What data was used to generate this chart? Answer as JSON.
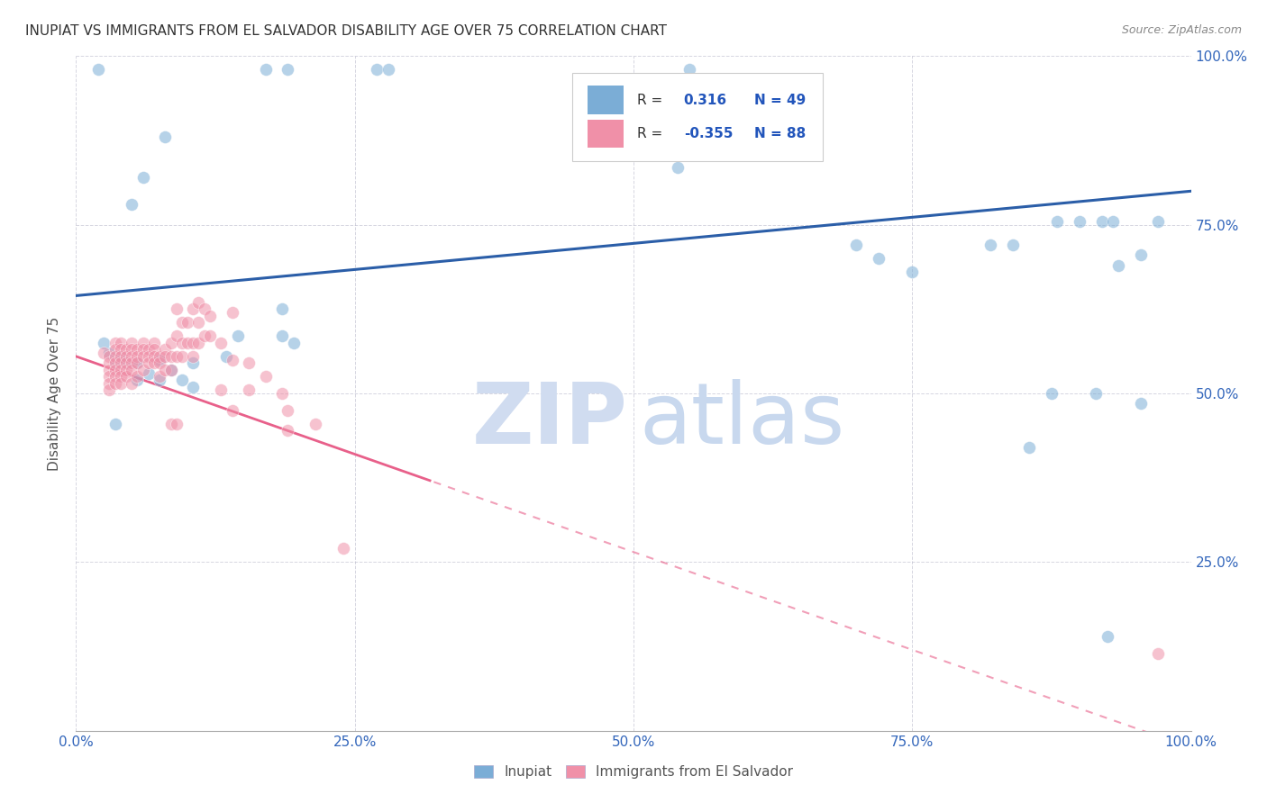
{
  "title": "INUPIAT VS IMMIGRANTS FROM EL SALVADOR DISABILITY AGE OVER 75 CORRELATION CHART",
  "source": "Source: ZipAtlas.com",
  "ylabel": "Disability Age Over 75",
  "xlim": [
    0,
    1
  ],
  "ylim": [
    0,
    1
  ],
  "xticks": [
    0.0,
    0.25,
    0.5,
    0.75,
    1.0
  ],
  "yticks": [
    0.0,
    0.25,
    0.5,
    0.75,
    1.0
  ],
  "xtick_labels": [
    "0.0%",
    "25.0%",
    "50.0%",
    "75.0%",
    "100.0%"
  ],
  "ytick_labels_right": [
    "",
    "25.0%",
    "50.0%",
    "75.0%",
    "100.0%"
  ],
  "blue_color": "#7BADD6",
  "pink_color": "#F090A8",
  "blue_line_color": "#2B5EA8",
  "pink_line_color": "#E8608A",
  "watermark_zip_color": "#D0DCF0",
  "watermark_atlas_color": "#C8D8EE",
  "blue_scatter": [
    [
      0.02,
      0.98
    ],
    [
      0.08,
      0.88
    ],
    [
      0.06,
      0.82
    ],
    [
      0.05,
      0.78
    ],
    [
      0.17,
      0.98
    ],
    [
      0.19,
      0.98
    ],
    [
      0.27,
      0.98
    ],
    [
      0.28,
      0.98
    ],
    [
      0.52,
      0.865
    ],
    [
      0.54,
      0.835
    ],
    [
      0.55,
      0.98
    ],
    [
      0.7,
      0.72
    ],
    [
      0.72,
      0.7
    ],
    [
      0.75,
      0.68
    ],
    [
      0.82,
      0.72
    ],
    [
      0.84,
      0.72
    ],
    [
      0.88,
      0.755
    ],
    [
      0.9,
      0.755
    ],
    [
      0.92,
      0.755
    ],
    [
      0.93,
      0.755
    ],
    [
      0.97,
      0.755
    ],
    [
      0.935,
      0.69
    ],
    [
      0.955,
      0.705
    ],
    [
      0.875,
      0.5
    ],
    [
      0.915,
      0.5
    ],
    [
      0.955,
      0.485
    ],
    [
      0.855,
      0.42
    ],
    [
      0.925,
      0.14
    ],
    [
      0.035,
      0.545
    ],
    [
      0.04,
      0.555
    ],
    [
      0.045,
      0.545
    ],
    [
      0.03,
      0.56
    ],
    [
      0.025,
      0.575
    ],
    [
      0.055,
      0.545
    ],
    [
      0.055,
      0.52
    ],
    [
      0.065,
      0.53
    ],
    [
      0.075,
      0.55
    ],
    [
      0.075,
      0.52
    ],
    [
      0.085,
      0.535
    ],
    [
      0.095,
      0.52
    ],
    [
      0.105,
      0.545
    ],
    [
      0.105,
      0.51
    ],
    [
      0.145,
      0.585
    ],
    [
      0.135,
      0.555
    ],
    [
      0.185,
      0.625
    ],
    [
      0.185,
      0.585
    ],
    [
      0.195,
      0.575
    ],
    [
      0.035,
      0.455
    ]
  ],
  "pink_scatter": [
    [
      0.025,
      0.56
    ],
    [
      0.03,
      0.555
    ],
    [
      0.03,
      0.545
    ],
    [
      0.03,
      0.535
    ],
    [
      0.03,
      0.525
    ],
    [
      0.03,
      0.515
    ],
    [
      0.03,
      0.505
    ],
    [
      0.035,
      0.575
    ],
    [
      0.035,
      0.565
    ],
    [
      0.035,
      0.555
    ],
    [
      0.035,
      0.545
    ],
    [
      0.035,
      0.535
    ],
    [
      0.035,
      0.525
    ],
    [
      0.035,
      0.515
    ],
    [
      0.04,
      0.575
    ],
    [
      0.04,
      0.565
    ],
    [
      0.04,
      0.555
    ],
    [
      0.04,
      0.545
    ],
    [
      0.04,
      0.535
    ],
    [
      0.04,
      0.525
    ],
    [
      0.04,
      0.515
    ],
    [
      0.045,
      0.565
    ],
    [
      0.045,
      0.555
    ],
    [
      0.045,
      0.545
    ],
    [
      0.045,
      0.535
    ],
    [
      0.045,
      0.525
    ],
    [
      0.05,
      0.575
    ],
    [
      0.05,
      0.565
    ],
    [
      0.05,
      0.555
    ],
    [
      0.05,
      0.545
    ],
    [
      0.05,
      0.535
    ],
    [
      0.05,
      0.515
    ],
    [
      0.055,
      0.565
    ],
    [
      0.055,
      0.555
    ],
    [
      0.055,
      0.545
    ],
    [
      0.055,
      0.525
    ],
    [
      0.06,
      0.575
    ],
    [
      0.06,
      0.565
    ],
    [
      0.06,
      0.555
    ],
    [
      0.06,
      0.535
    ],
    [
      0.065,
      0.565
    ],
    [
      0.065,
      0.555
    ],
    [
      0.065,
      0.545
    ],
    [
      0.07,
      0.575
    ],
    [
      0.07,
      0.565
    ],
    [
      0.07,
      0.555
    ],
    [
      0.07,
      0.545
    ],
    [
      0.075,
      0.555
    ],
    [
      0.075,
      0.545
    ],
    [
      0.075,
      0.525
    ],
    [
      0.08,
      0.565
    ],
    [
      0.08,
      0.555
    ],
    [
      0.08,
      0.535
    ],
    [
      0.085,
      0.575
    ],
    [
      0.085,
      0.555
    ],
    [
      0.085,
      0.535
    ],
    [
      0.085,
      0.455
    ],
    [
      0.09,
      0.625
    ],
    [
      0.09,
      0.585
    ],
    [
      0.09,
      0.555
    ],
    [
      0.09,
      0.455
    ],
    [
      0.095,
      0.605
    ],
    [
      0.095,
      0.575
    ],
    [
      0.095,
      0.555
    ],
    [
      0.1,
      0.605
    ],
    [
      0.1,
      0.575
    ],
    [
      0.105,
      0.625
    ],
    [
      0.105,
      0.575
    ],
    [
      0.105,
      0.555
    ],
    [
      0.11,
      0.635
    ],
    [
      0.11,
      0.605
    ],
    [
      0.11,
      0.575
    ],
    [
      0.115,
      0.625
    ],
    [
      0.115,
      0.585
    ],
    [
      0.12,
      0.615
    ],
    [
      0.12,
      0.585
    ],
    [
      0.13,
      0.575
    ],
    [
      0.13,
      0.505
    ],
    [
      0.14,
      0.62
    ],
    [
      0.14,
      0.55
    ],
    [
      0.14,
      0.475
    ],
    [
      0.155,
      0.545
    ],
    [
      0.155,
      0.505
    ],
    [
      0.17,
      0.525
    ],
    [
      0.185,
      0.5
    ],
    [
      0.19,
      0.475
    ],
    [
      0.19,
      0.445
    ],
    [
      0.215,
      0.455
    ],
    [
      0.24,
      0.27
    ],
    [
      0.97,
      0.115
    ]
  ]
}
